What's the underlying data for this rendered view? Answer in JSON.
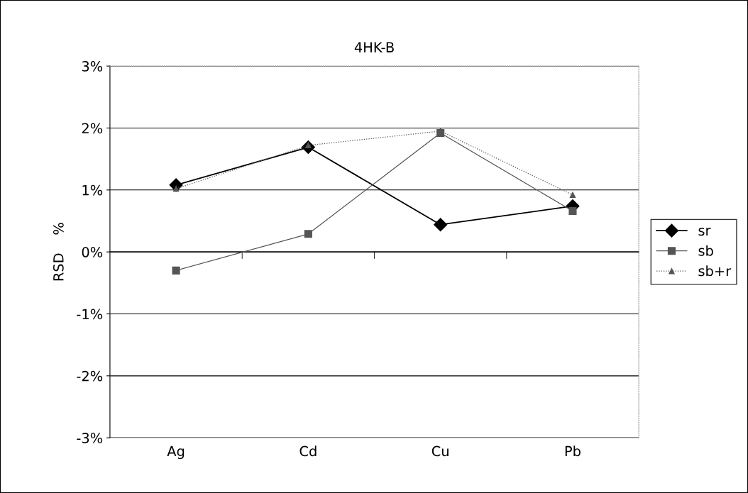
{
  "chart_data": {
    "type": "line",
    "title": "4HK-B",
    "ylabel": "RSD    %",
    "categories": [
      "Ag",
      "Cd",
      "Cu",
      "Pb"
    ],
    "series": [
      {
        "name": "sr",
        "color": "#000000",
        "values": [
          1.08,
          1.69,
          0.44,
          0.74
        ],
        "marker": "diamond",
        "line_style": "solid"
      },
      {
        "name": "sb",
        "color": "#555555",
        "values": [
          -0.3,
          0.29,
          1.92,
          0.66
        ],
        "marker": "square",
        "line_style": "solid"
      },
      {
        "name": "sb+r",
        "color": "#555555",
        "values": [
          1.02,
          1.72,
          1.95,
          0.92
        ],
        "marker": "triangle",
        "line_style": "dotted"
      }
    ],
    "ylim": [
      -3,
      3
    ],
    "yticks": [
      {
        "value": -3,
        "label": "-3%"
      },
      {
        "value": -2,
        "label": "-2%"
      },
      {
        "value": -1,
        "label": "-1%"
      },
      {
        "value": 0,
        "label": "0%"
      },
      {
        "value": 1,
        "label": "1%"
      },
      {
        "value": 2,
        "label": "2%"
      },
      {
        "value": 3,
        "label": "3%"
      }
    ],
    "grid": "y",
    "legend": "right"
  }
}
